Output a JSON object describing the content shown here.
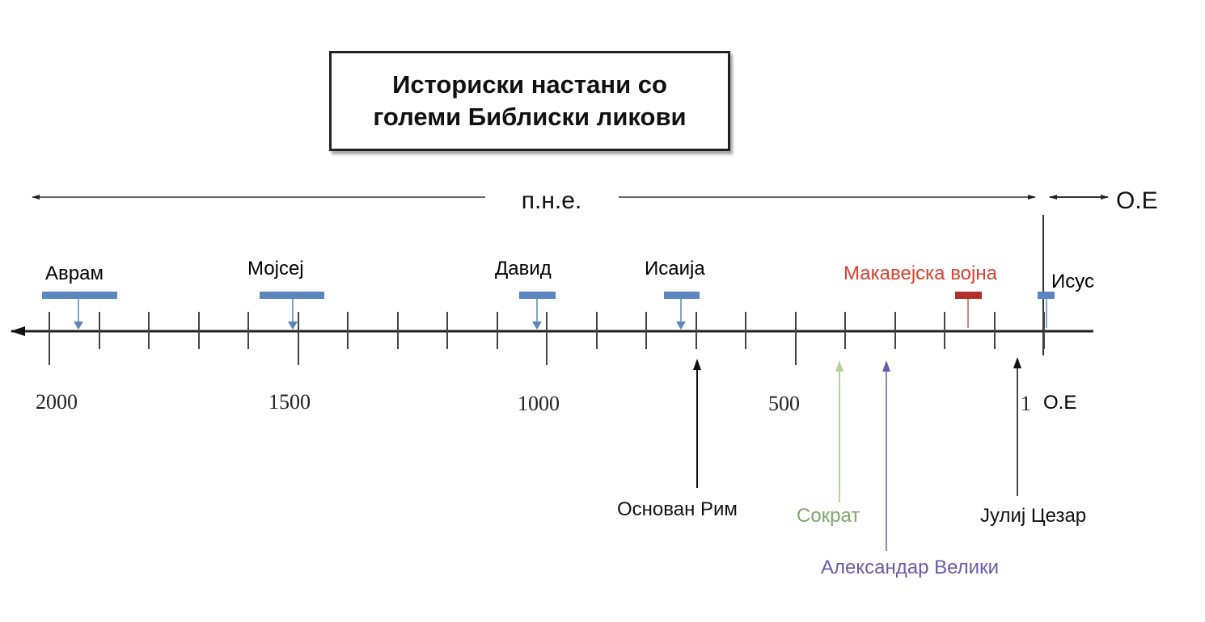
{
  "title": "Историски настани со големи Библиски ликови",
  "eras": {
    "bc": "п.н.е.",
    "ad": "О.Е"
  },
  "axis_ticks": [
    {
      "label": "2000"
    },
    {
      "label": "1500"
    },
    {
      "label": "1000"
    },
    {
      "label": "500"
    },
    {
      "label": "1"
    },
    {
      "label": "О.Е"
    }
  ],
  "biblical_figures": [
    {
      "name": "Аврам",
      "color": "#5b86bf"
    },
    {
      "name": "Мојсеј",
      "color": "#5b86bf"
    },
    {
      "name": "Давид",
      "color": "#5b86bf"
    },
    {
      "name": "Исаија",
      "color": "#5b86bf"
    },
    {
      "name": "Макавејска војна",
      "color": "#b3302a",
      "text_color": "#d9402e"
    },
    {
      "name": "Исус",
      "color": "#5b86bf"
    }
  ],
  "world_events": [
    {
      "name": "Основан Рим",
      "color": "#111111"
    },
    {
      "name": "Сократ",
      "color": "#7fa86a",
      "line_color": "#b5d39a"
    },
    {
      "name": "Александар Велики",
      "color": "#6a5aa8"
    },
    {
      "name": "Јулиј Цезар",
      "color": "#111111"
    }
  ]
}
